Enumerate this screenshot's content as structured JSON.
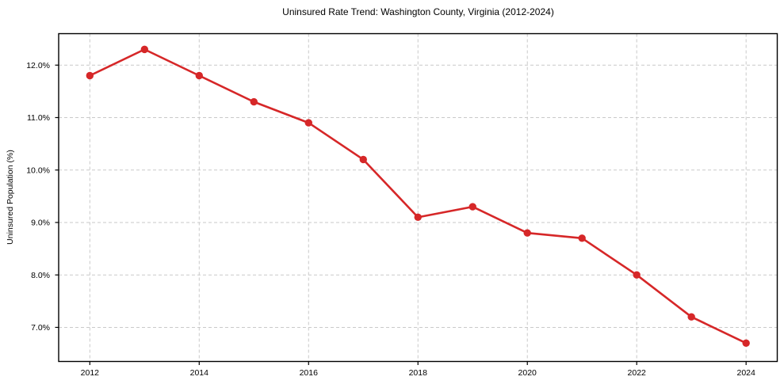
{
  "chart_data": {
    "type": "line",
    "title": "Uninsured Rate Trend: Washington County, Virginia (2012-2024)",
    "xlabel": "",
    "ylabel": "Uninsured Population (%)",
    "x": [
      2012,
      2013,
      2014,
      2015,
      2016,
      2017,
      2018,
      2019,
      2020,
      2021,
      2022,
      2023,
      2024
    ],
    "values": [
      11.8,
      12.3,
      11.8,
      11.3,
      10.9,
      10.2,
      9.1,
      9.3,
      8.8,
      8.7,
      8.0,
      7.2,
      6.7
    ],
    "x_ticks": [
      2012,
      2014,
      2016,
      2018,
      2020,
      2022,
      2024
    ],
    "x_tick_labels": [
      "2012",
      "2014",
      "2016",
      "2018",
      "2020",
      "2022",
      "2024"
    ],
    "y_ticks": [
      7,
      8,
      9,
      10,
      11,
      12
    ],
    "y_tick_labels": [
      "7.0%",
      "8.0%",
      "9.0%",
      "10.0%",
      "11.0%",
      "12.0%"
    ],
    "xlim": [
      2011.43,
      2024.57
    ],
    "ylim": [
      6.35,
      12.6
    ],
    "grid": true,
    "grid_style": "dashed",
    "legend": false,
    "line_color": "#d62728",
    "marker": "o",
    "grid_color": "#c9c9c9",
    "axis_color": "#000000",
    "background": "#ffffff"
  }
}
